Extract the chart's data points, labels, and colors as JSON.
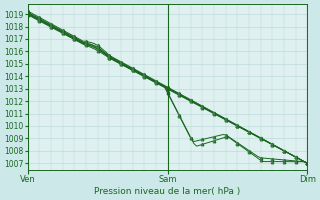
{
  "title": "Pression niveau de la mer( hPa )",
  "bg_color": "#cce8e8",
  "grid_color": "#b8d4d4",
  "plot_bg": "#dff0f0",
  "line_color": "#1a6620",
  "marker_color": "#1a6620",
  "ylim": [
    1006.5,
    1019.8
  ],
  "yticks": [
    1007,
    1008,
    1009,
    1010,
    1011,
    1012,
    1013,
    1014,
    1015,
    1016,
    1017,
    1018,
    1019
  ],
  "xtick_labels": [
    "Ven",
    "Sam",
    "Dim"
  ],
  "xtick_positions": [
    0,
    48,
    96
  ],
  "xlim": [
    0,
    96
  ],
  "n_points": 97
}
